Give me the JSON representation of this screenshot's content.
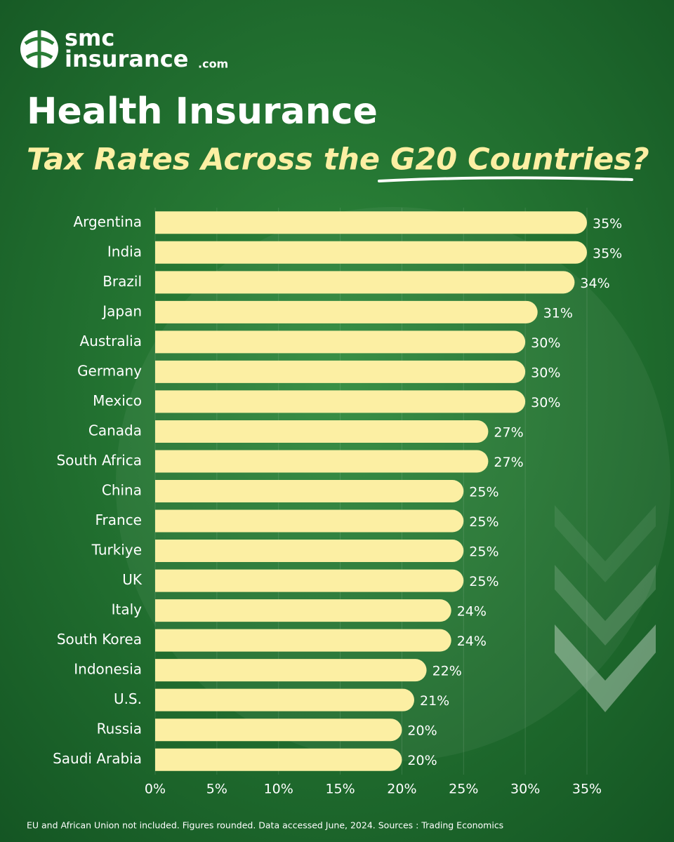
{
  "logo": {
    "line1": "smc",
    "line2": "insurance",
    "suffix": ".com"
  },
  "chart_data": {
    "type": "bar",
    "orientation": "horizontal",
    "title": "Health Insurance",
    "subtitle": "Tax Rates Across the G20 Countries?",
    "categories": [
      "Argentina",
      "India",
      "Brazil",
      "Japan",
      "Australia",
      "Germany",
      "Mexico",
      "Canada",
      "South Africa",
      "China",
      "France",
      "Turkiye",
      "UK",
      "Italy",
      "South Korea",
      "Indonesia",
      "U.S.",
      "Russia",
      "Saudi Arabia"
    ],
    "values": [
      35,
      35,
      34,
      31,
      30,
      30,
      30,
      27,
      27,
      25,
      25,
      25,
      25,
      24,
      24,
      22,
      21,
      20,
      20
    ],
    "value_labels": [
      "35%",
      "35%",
      "34%",
      "31%",
      "30%",
      "30%",
      "30%",
      "27%",
      "27%",
      "25%",
      "25%",
      "25%",
      "25%",
      "24%",
      "24%",
      "22%",
      "21%",
      "20%",
      "20%"
    ],
    "color": "#fcefa3",
    "xlim": [
      0,
      35
    ],
    "xticks": [
      {
        "value": 0,
        "label": "0%"
      },
      {
        "value": 5,
        "label": "5%"
      },
      {
        "value": 10,
        "label": "10%"
      },
      {
        "value": 15,
        "label": "15%"
      },
      {
        "value": 20,
        "label": "20%"
      },
      {
        "value": 25,
        "label": "25%"
      },
      {
        "value": 30,
        "label": "30%"
      },
      {
        "value": 35,
        "label": "35%"
      }
    ],
    "grid": true,
    "footnote": "EU and African Union not included. Figures rounded. Data accessed June, 2024. Sources : Trading Economics"
  }
}
